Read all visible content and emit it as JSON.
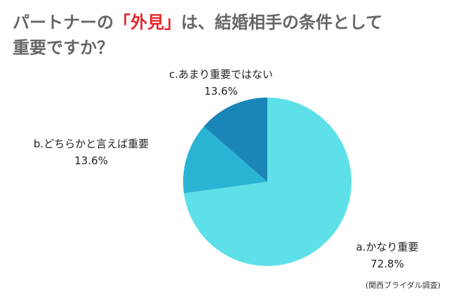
{
  "header": {
    "title_before": "パートナーの",
    "title_accent": "「外見」",
    "title_after": "は、結婚相手の条件として",
    "title_line2": "重要ですか？"
  },
  "source": "(関西ブライダル調査)",
  "colors": {
    "title": "#666666",
    "accent": "#e8262b",
    "slices": [
      "#5ee0e8",
      "#2ab4d3",
      "#1a86b8"
    ]
  },
  "chart_data": {
    "type": "pie",
    "start_angle_deg": 0,
    "direction": "clockwise",
    "slices": [
      {
        "label": "a.かなり重要",
        "value": 72.8,
        "display": "72.8%"
      },
      {
        "label": "b.どちらかと言えば重要",
        "value": 13.6,
        "display": "13.6%"
      },
      {
        "label": "c.あまり重要ではない",
        "value": 13.6,
        "display": "13.6%"
      }
    ]
  }
}
